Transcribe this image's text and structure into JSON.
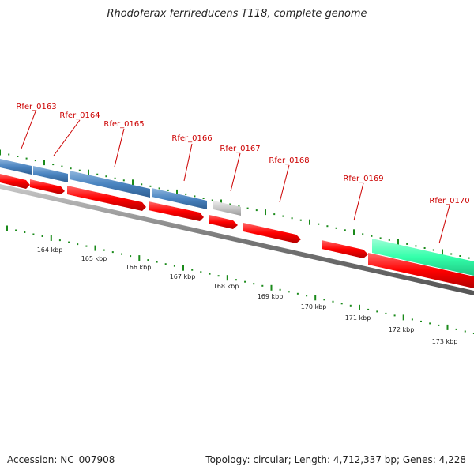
{
  "title": "Rhodoferax ferrireducens T118, complete genome",
  "accession": "Accession: NC_007908",
  "summary": "Topology: circular; Length: 4,712,337 bp; Genes: 4,228",
  "colors": {
    "cds_red": "#ff0000",
    "gene_blue": "#4a84c0",
    "gene_gray": "#c8c8c8",
    "gene_green": "#33ffaa",
    "tick_green": "#1a8a1a",
    "label_red": "#cc0000",
    "backbone": "#777777"
  },
  "gene_labels": [
    "Rfer_0163",
    "Rfer_0164",
    "Rfer_0165",
    "Rfer_0166",
    "Rfer_0167",
    "Rfer_0168",
    "Rfer_0169",
    "Rfer_0170"
  ],
  "scale_labels": [
    "164 kbp",
    "165 kbp",
    "166 kbp",
    "167 kbp",
    "168 kbp",
    "169 kbp",
    "170 kbp",
    "171 kbp",
    "172 kbp",
    "173 kbp"
  ]
}
